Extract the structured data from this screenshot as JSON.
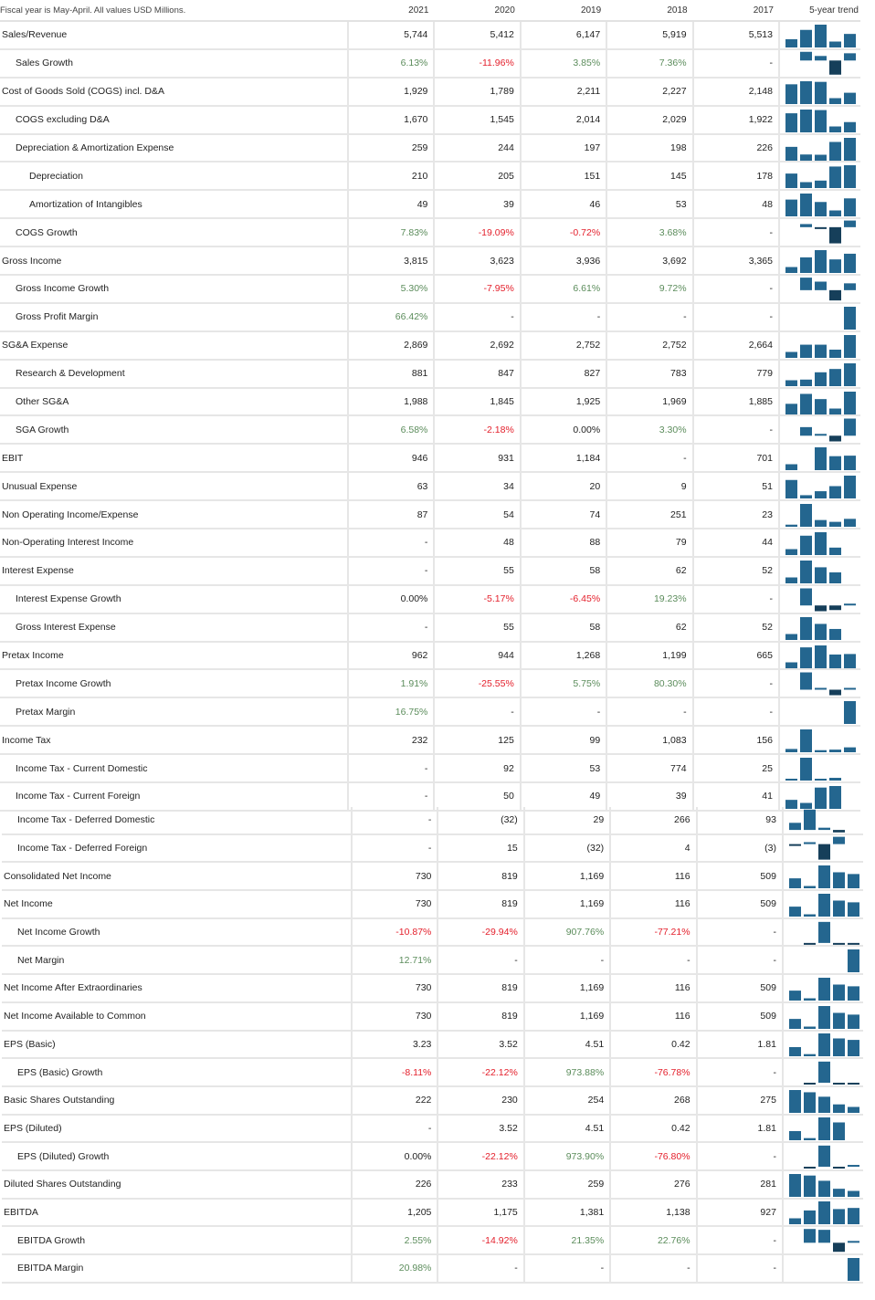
{
  "header": {
    "note": "Fiscal year is May-April. All values USD Millions.",
    "years": [
      "2021",
      "2020",
      "2019",
      "2018",
      "2017"
    ],
    "trend_label": "5-year trend"
  },
  "colors": {
    "bar": "#24668f",
    "bar_negative": "#163f5a",
    "positive_text": "#5b8c5b",
    "negative_text": "#e4202c"
  },
  "rows": [
    {
      "label": "Sales/Revenue",
      "level": 0,
      "values": [
        "5,744",
        "5,412",
        "6,147",
        "5,919",
        "5,513"
      ]
    },
    {
      "label": "Sales Growth",
      "level": 1,
      "values": [
        "6.13%",
        "-11.96%",
        "3.85%",
        "7.36%",
        "-"
      ]
    },
    {
      "label": "Cost of Goods Sold (COGS) incl. D&A",
      "level": 0,
      "values": [
        "1,929",
        "1,789",
        "2,211",
        "2,227",
        "2,148"
      ]
    },
    {
      "label": "COGS excluding D&A",
      "level": 1,
      "values": [
        "1,670",
        "1,545",
        "2,014",
        "2,029",
        "1,922"
      ]
    },
    {
      "label": "Depreciation & Amortization Expense",
      "level": 1,
      "values": [
        "259",
        "244",
        "197",
        "198",
        "226"
      ]
    },
    {
      "label": "Depreciation",
      "level": 2,
      "values": [
        "210",
        "205",
        "151",
        "145",
        "178"
      ]
    },
    {
      "label": "Amortization of Intangibles",
      "level": 2,
      "values": [
        "49",
        "39",
        "46",
        "53",
        "48"
      ]
    },
    {
      "label": "COGS Growth",
      "level": 1,
      "values": [
        "7.83%",
        "-19.09%",
        "-0.72%",
        "3.68%",
        "-"
      ]
    },
    {
      "label": "Gross Income",
      "level": 0,
      "values": [
        "3,815",
        "3,623",
        "3,936",
        "3,692",
        "3,365"
      ]
    },
    {
      "label": "Gross Income Growth",
      "level": 1,
      "values": [
        "5.30%",
        "-7.95%",
        "6.61%",
        "9.72%",
        "-"
      ]
    },
    {
      "label": "Gross Profit Margin",
      "level": 1,
      "values": [
        "66.42%",
        "-",
        "-",
        "-",
        "-"
      ]
    },
    {
      "label": "SG&A Expense",
      "level": 0,
      "values": [
        "2,869",
        "2,692",
        "2,752",
        "2,752",
        "2,664"
      ]
    },
    {
      "label": "Research & Development",
      "level": 1,
      "values": [
        "881",
        "847",
        "827",
        "783",
        "779"
      ]
    },
    {
      "label": "Other SG&A",
      "level": 1,
      "values": [
        "1,988",
        "1,845",
        "1,925",
        "1,969",
        "1,885"
      ]
    },
    {
      "label": "SGA Growth",
      "level": 1,
      "values": [
        "6.58%",
        "-2.18%",
        "0.00%",
        "3.30%",
        "-"
      ]
    },
    {
      "label": "EBIT",
      "level": 0,
      "values": [
        "946",
        "931",
        "1,184",
        "-",
        "701"
      ]
    },
    {
      "label": "Unusual Expense",
      "level": 0,
      "values": [
        "63",
        "34",
        "20",
        "9",
        "51"
      ]
    },
    {
      "label": "Non Operating Income/Expense",
      "level": 0,
      "values": [
        "87",
        "54",
        "74",
        "251",
        "23"
      ]
    },
    {
      "label": "Non-Operating Interest Income",
      "level": 0,
      "values": [
        "-",
        "48",
        "88",
        "79",
        "44"
      ]
    },
    {
      "label": "Interest Expense",
      "level": 0,
      "values": [
        "-",
        "55",
        "58",
        "62",
        "52"
      ]
    },
    {
      "label": "Interest Expense Growth",
      "level": 1,
      "values": [
        "0.00%",
        "-5.17%",
        "-6.45%",
        "19.23%",
        "-"
      ]
    },
    {
      "label": "Gross Interest Expense",
      "level": 1,
      "values": [
        "-",
        "55",
        "58",
        "62",
        "52"
      ]
    },
    {
      "label": "Pretax Income",
      "level": 0,
      "values": [
        "962",
        "944",
        "1,268",
        "1,199",
        "665"
      ]
    },
    {
      "label": "Pretax Income Growth",
      "level": 1,
      "values": [
        "1.91%",
        "-25.55%",
        "5.75%",
        "80.30%",
        "-"
      ]
    },
    {
      "label": "Pretax Margin",
      "level": 1,
      "values": [
        "16.75%",
        "-",
        "-",
        "-",
        "-"
      ]
    },
    {
      "label": "Income Tax",
      "level": 0,
      "values": [
        "232",
        "125",
        "99",
        "1,083",
        "156"
      ]
    },
    {
      "label": "Income Tax - Current Domestic",
      "level": 1,
      "values": [
        "-",
        "92",
        "53",
        "774",
        "25"
      ]
    },
    {
      "label": "Income Tax - Current Foreign",
      "level": 1,
      "values": [
        "-",
        "50",
        "49",
        "39",
        "41"
      ]
    },
    {
      "label": "Income Tax - Deferred Domestic",
      "level": 1,
      "values": [
        "-",
        "(32)",
        "29",
        "266",
        "93"
      ]
    },
    {
      "label": "Income Tax - Deferred Foreign",
      "level": 1,
      "values": [
        "-",
        "15",
        "(32)",
        "4",
        "(3)"
      ]
    },
    {
      "label": "Consolidated Net Income",
      "level": 0,
      "values": [
        "730",
        "819",
        "1,169",
        "116",
        "509"
      ]
    },
    {
      "label": "Net Income",
      "level": 0,
      "values": [
        "730",
        "819",
        "1,169",
        "116",
        "509"
      ]
    },
    {
      "label": "Net Income Growth",
      "level": 1,
      "values": [
        "-10.87%",
        "-29.94%",
        "907.76%",
        "-77.21%",
        "-"
      ]
    },
    {
      "label": "Net Margin",
      "level": 1,
      "values": [
        "12.71%",
        "-",
        "-",
        "-",
        "-"
      ]
    },
    {
      "label": "Net Income After Extraordinaries",
      "level": 0,
      "values": [
        "730",
        "819",
        "1,169",
        "116",
        "509"
      ]
    },
    {
      "label": "Net Income Available to Common",
      "level": 0,
      "values": [
        "730",
        "819",
        "1,169",
        "116",
        "509"
      ]
    },
    {
      "label": "EPS (Basic)",
      "level": 0,
      "values": [
        "3.23",
        "3.52",
        "4.51",
        "0.42",
        "1.81"
      ]
    },
    {
      "label": "EPS (Basic) Growth",
      "level": 1,
      "values": [
        "-8.11%",
        "-22.12%",
        "973.88%",
        "-76.78%",
        "-"
      ]
    },
    {
      "label": "Basic Shares Outstanding",
      "level": 0,
      "values": [
        "222",
        "230",
        "254",
        "268",
        "275"
      ]
    },
    {
      "label": "EPS (Diluted)",
      "level": 0,
      "values": [
        "-",
        "3.52",
        "4.51",
        "0.42",
        "1.81"
      ]
    },
    {
      "label": "EPS (Diluted) Growth",
      "level": 1,
      "values": [
        "0.00%",
        "-22.12%",
        "973.90%",
        "-76.80%",
        "-"
      ]
    },
    {
      "label": "Diluted Shares Outstanding",
      "level": 0,
      "values": [
        "226",
        "233",
        "259",
        "276",
        "281"
      ]
    },
    {
      "label": "EBITDA",
      "level": 0,
      "values": [
        "1,205",
        "1,175",
        "1,381",
        "1,138",
        "927"
      ]
    },
    {
      "label": "EBITDA Growth",
      "level": 1,
      "values": [
        "2.55%",
        "-14.92%",
        "21.35%",
        "22.76%",
        "-"
      ]
    },
    {
      "label": "EBITDA Margin",
      "level": 1,
      "values": [
        "20.98%",
        "-",
        "-",
        "-",
        "-"
      ]
    }
  ]
}
